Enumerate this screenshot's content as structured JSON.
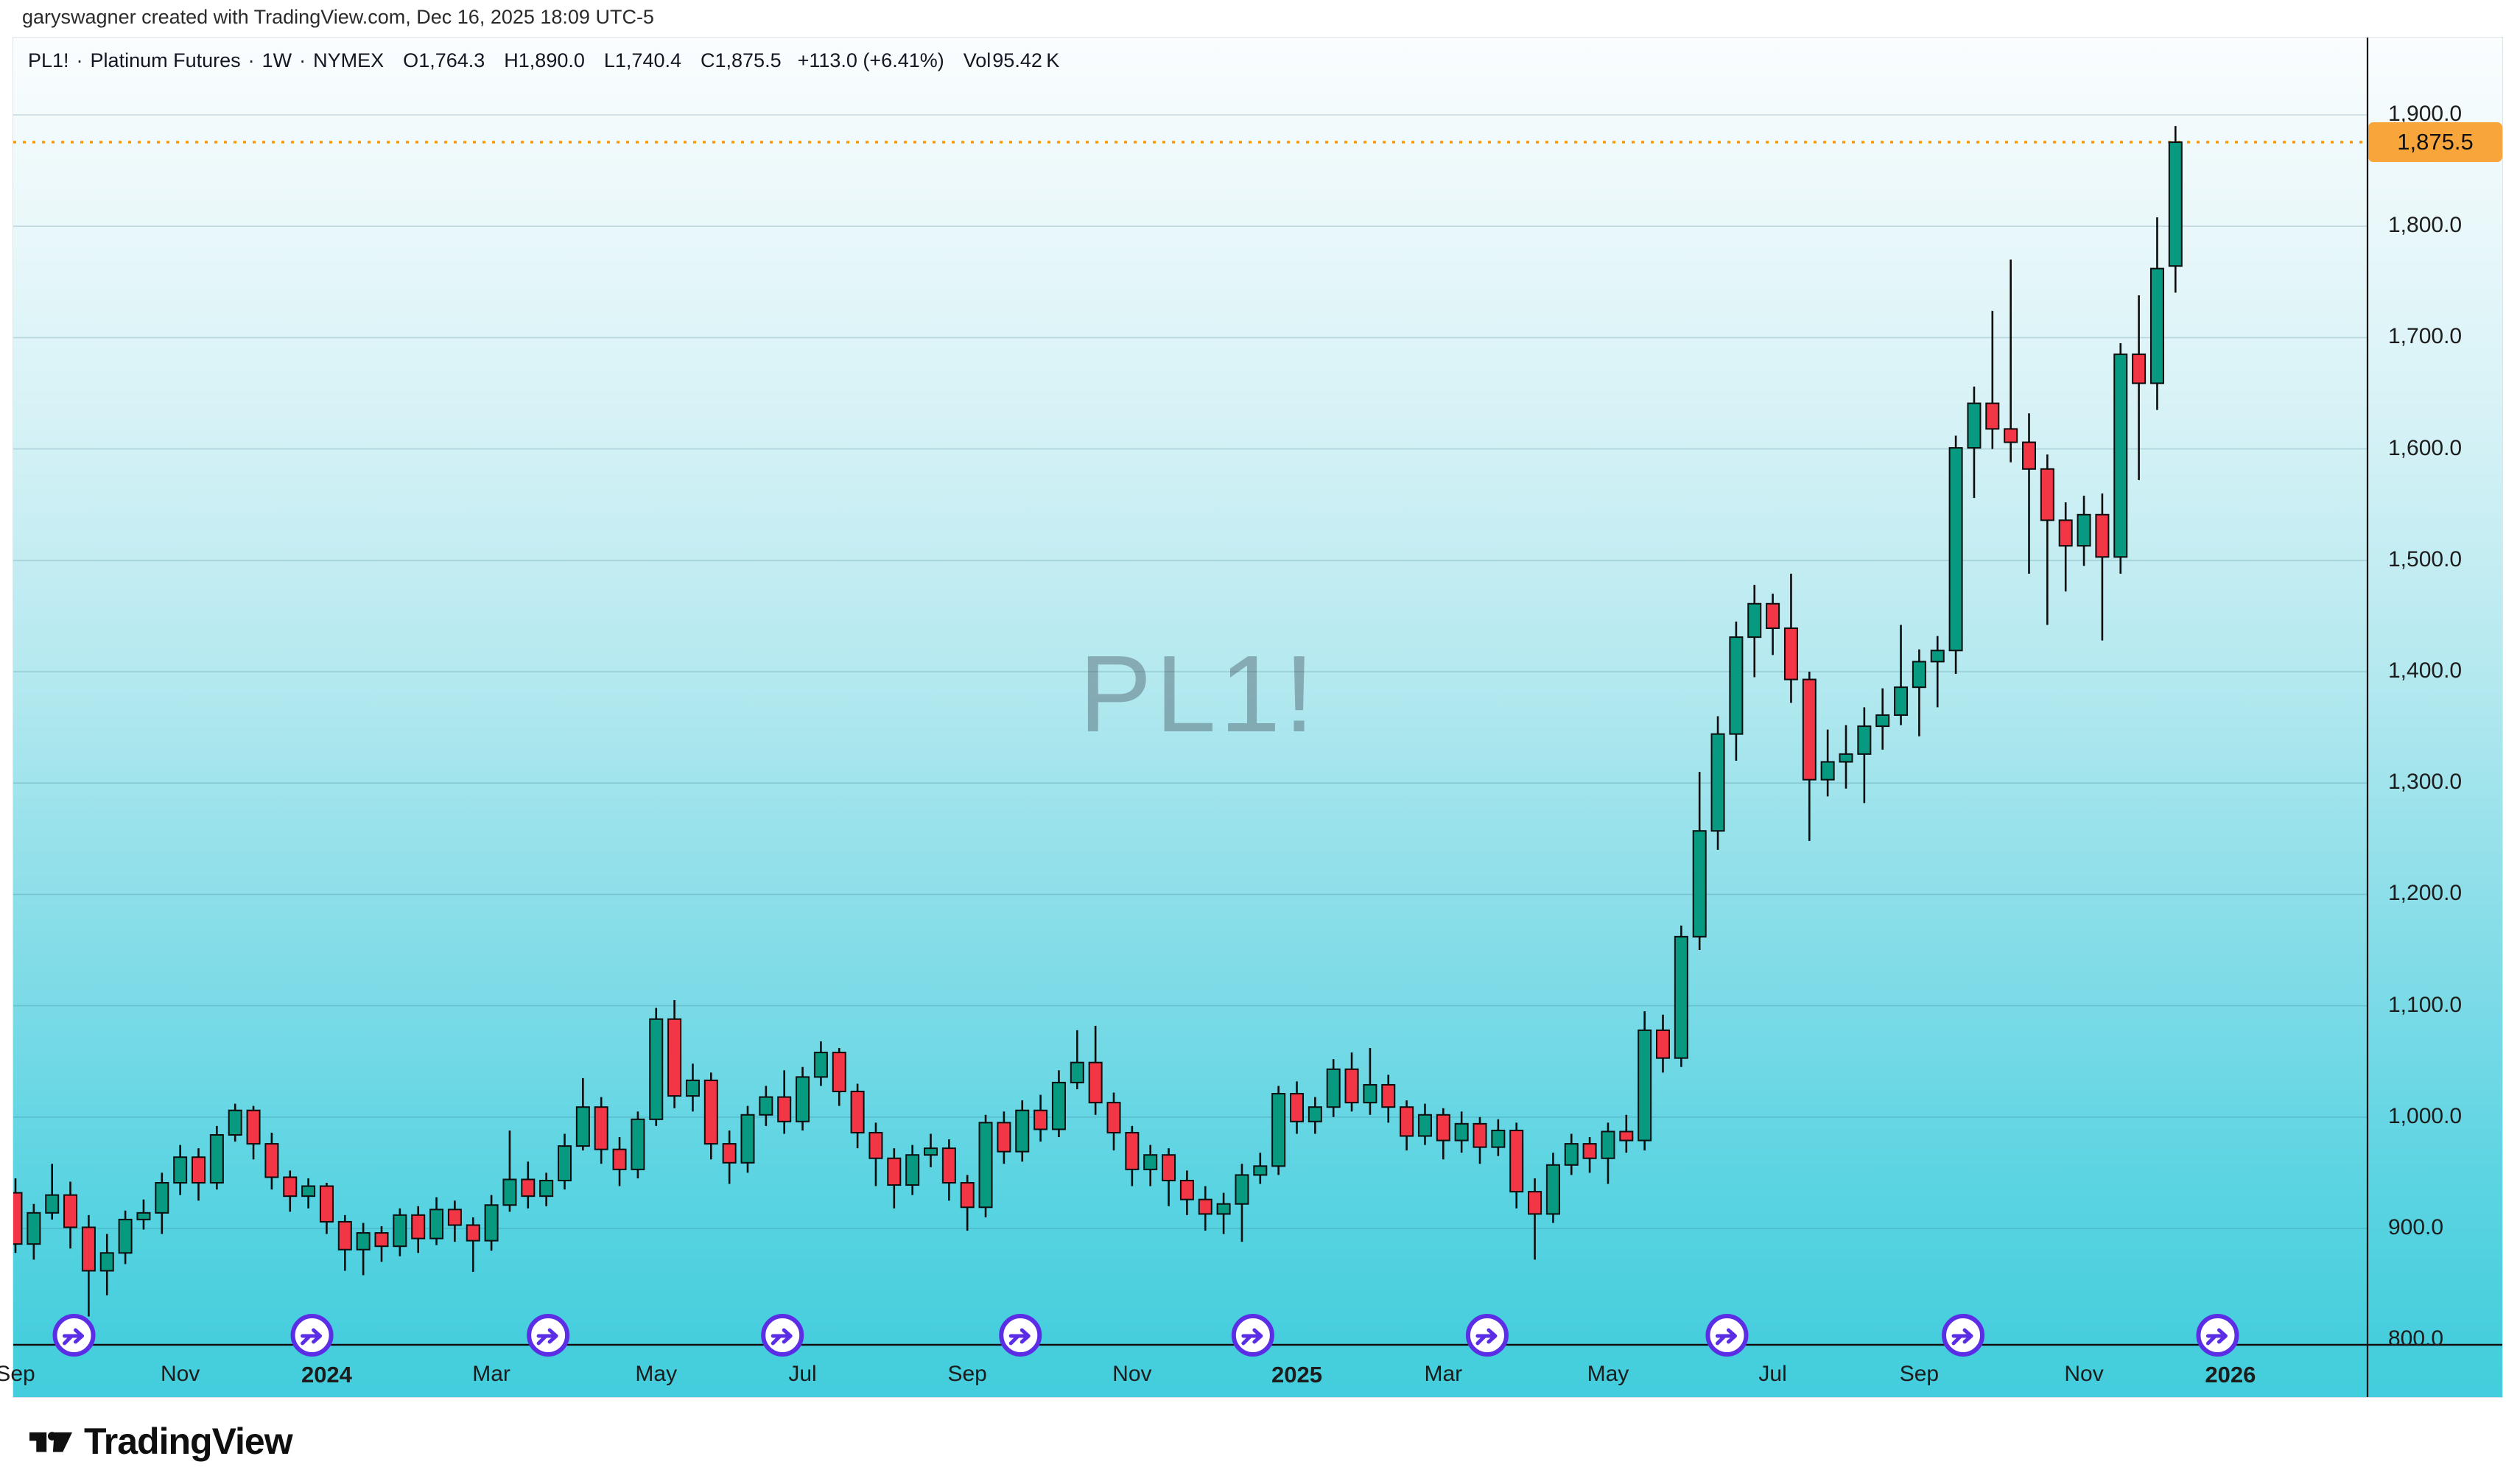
{
  "attribution": "garyswagner created with TradingView.com, Dec 16, 2025 18:09 UTC-5",
  "legend": {
    "symbol": "PL1!",
    "separator": "·",
    "name": "Platinum Futures",
    "interval": "1W",
    "exchange": "NYMEX",
    "ohlc": [
      {
        "label": "O",
        "value": "1,764.3"
      },
      {
        "label": "H",
        "value": "1,890.0"
      },
      {
        "label": "L",
        "value": "1,740.4"
      },
      {
        "label": "C",
        "value": "1,875.5"
      }
    ],
    "change": "+113.0 (+6.41%)",
    "volume_label": "Vol",
    "volume_value": "95.42 K"
  },
  "watermark": "PL1!",
  "price_scale": {
    "last_price_label": "1,875.5",
    "ticks": [
      {
        "label": "1,900.0",
        "price": 1900
      },
      {
        "label": "1,800.0",
        "price": 1800
      },
      {
        "label": "1,700.0",
        "price": 1700
      },
      {
        "label": "1,600.0",
        "price": 1600
      },
      {
        "label": "1,500.0",
        "price": 1500
      },
      {
        "label": "1,400.0",
        "price": 1400
      },
      {
        "label": "1,300.0",
        "price": 1300
      },
      {
        "label": "1,200.0",
        "price": 1200
      },
      {
        "label": "1,100.0",
        "price": 1100
      },
      {
        "label": "1,000.0",
        "price": 1000
      },
      {
        "label": "900.0",
        "price": 900
      },
      {
        "label": "800.0",
        "price": 800
      }
    ]
  },
  "time_scale": {
    "ticks": [
      {
        "label": "Sep",
        "week": 0,
        "bold": false
      },
      {
        "label": "Nov",
        "week": 9,
        "bold": false
      },
      {
        "label": "2024",
        "week": 17,
        "bold": true
      },
      {
        "label": "Mar",
        "week": 26,
        "bold": false
      },
      {
        "label": "May",
        "week": 35,
        "bold": false
      },
      {
        "label": "Jul",
        "week": 43,
        "bold": false
      },
      {
        "label": "Sep",
        "week": 52,
        "bold": false
      },
      {
        "label": "Nov",
        "week": 61,
        "bold": false
      },
      {
        "label": "2025",
        "week": 70,
        "bold": true
      },
      {
        "label": "Mar",
        "week": 78,
        "bold": false
      },
      {
        "label": "May",
        "week": 87,
        "bold": false
      },
      {
        "label": "Jul",
        "week": 96,
        "bold": false
      },
      {
        "label": "Sep",
        "week": 104,
        "bold": false
      },
      {
        "label": "Nov",
        "week": 113,
        "bold": false
      },
      {
        "label": "2026",
        "week": 121,
        "bold": true
      }
    ]
  },
  "rollover_markers": {
    "description": "quarterly contract continuation markers",
    "weeks": [
      3.2,
      16.2,
      29.1,
      41.9,
      54.9,
      67.6,
      80.4,
      93.5,
      106.4,
      120.3
    ]
  },
  "logo_text": "TradingView",
  "colors": {
    "up": "#089981",
    "down": "#F23645",
    "candle_border": "#0d0d0d",
    "last_price_line": "#FF9800",
    "last_price_tag_bg": "#F8A63C",
    "marker_purple": "#5B2EE6",
    "axis_line": "#111111",
    "grid_line": "rgba(30,90,110,0.20)",
    "text": "#131722"
  },
  "chart_data": {
    "type": "candlestick",
    "title": "PL1! Platinum Futures, 1 Week, NYMEX",
    "interval": "1W",
    "start_week_date": "2023-09-04",
    "price_axis_range": [
      800,
      1900
    ],
    "price_grid_step": 100,
    "grid": true,
    "legend_position": "top-left",
    "last_bar": {
      "open": 1764.3,
      "high": 1890.0,
      "low": 1740.4,
      "close": 1875.5,
      "change": 113.0,
      "change_pct": 6.41,
      "volume": "95.42K"
    },
    "candles_ohlc": [
      [
        932,
        945,
        878,
        886
      ],
      [
        886,
        922,
        872,
        914
      ],
      [
        914,
        958,
        908,
        930
      ],
      [
        930,
        942,
        882,
        901
      ],
      [
        901,
        912,
        821,
        862
      ],
      [
        862,
        895,
        840,
        878
      ],
      [
        878,
        916,
        868,
        908
      ],
      [
        908,
        926,
        899,
        914
      ],
      [
        914,
        950,
        895,
        941
      ],
      [
        941,
        975,
        930,
        964
      ],
      [
        964,
        972,
        925,
        941
      ],
      [
        941,
        992,
        935,
        984
      ],
      [
        984,
        1012,
        978,
        1006
      ],
      [
        1006,
        1010,
        962,
        976
      ],
      [
        976,
        986,
        935,
        946
      ],
      [
        946,
        952,
        915,
        929
      ],
      [
        929,
        945,
        918,
        938
      ],
      [
        938,
        941,
        895,
        906
      ],
      [
        906,
        912,
        862,
        881
      ],
      [
        881,
        905,
        858,
        896
      ],
      [
        896,
        902,
        870,
        884
      ],
      [
        884,
        918,
        875,
        912
      ],
      [
        912,
        920,
        878,
        891
      ],
      [
        891,
        928,
        885,
        917
      ],
      [
        917,
        925,
        888,
        903
      ],
      [
        903,
        910,
        861,
        889
      ],
      [
        889,
        930,
        880,
        921
      ],
      [
        921,
        988,
        915,
        944
      ],
      [
        944,
        960,
        918,
        929
      ],
      [
        929,
        950,
        920,
        943
      ],
      [
        943,
        985,
        935,
        974
      ],
      [
        974,
        1035,
        970,
        1009
      ],
      [
        1009,
        1018,
        958,
        971
      ],
      [
        971,
        982,
        938,
        953
      ],
      [
        953,
        1005,
        945,
        998
      ],
      [
        998,
        1098,
        992,
        1088
      ],
      [
        1088,
        1105,
        1008,
        1019
      ],
      [
        1019,
        1048,
        1005,
        1033
      ],
      [
        1033,
        1040,
        962,
        976
      ],
      [
        976,
        988,
        940,
        959
      ],
      [
        959,
        1010,
        950,
        1002
      ],
      [
        1002,
        1028,
        992,
        1018
      ],
      [
        1018,
        1042,
        985,
        996
      ],
      [
        996,
        1045,
        988,
        1036
      ],
      [
        1036,
        1068,
        1028,
        1058
      ],
      [
        1058,
        1062,
        1010,
        1023
      ],
      [
        1023,
        1030,
        972,
        986
      ],
      [
        986,
        995,
        938,
        963
      ],
      [
        963,
        972,
        918,
        939
      ],
      [
        939,
        975,
        930,
        966
      ],
      [
        966,
        985,
        955,
        972
      ],
      [
        972,
        980,
        925,
        941
      ],
      [
        941,
        948,
        898,
        919
      ],
      [
        919,
        1002,
        910,
        995
      ],
      [
        995,
        1005,
        958,
        969
      ],
      [
        969,
        1015,
        960,
        1006
      ],
      [
        1006,
        1020,
        978,
        989
      ],
      [
        989,
        1042,
        982,
        1031
      ],
      [
        1031,
        1078,
        1025,
        1049
      ],
      [
        1049,
        1082,
        1002,
        1013
      ],
      [
        1013,
        1022,
        970,
        986
      ],
      [
        986,
        992,
        938,
        953
      ],
      [
        953,
        975,
        938,
        966
      ],
      [
        966,
        972,
        920,
        943
      ],
      [
        943,
        952,
        912,
        926
      ],
      [
        926,
        938,
        898,
        913
      ],
      [
        913,
        932,
        895,
        922
      ],
      [
        922,
        958,
        888,
        948
      ],
      [
        948,
        968,
        940,
        956
      ],
      [
        956,
        1028,
        948,
        1021
      ],
      [
        1021,
        1032,
        985,
        996
      ],
      [
        996,
        1018,
        985,
        1009
      ],
      [
        1009,
        1052,
        1000,
        1043
      ],
      [
        1043,
        1058,
        1005,
        1013
      ],
      [
        1013,
        1062,
        1002,
        1029
      ],
      [
        1029,
        1038,
        995,
        1009
      ],
      [
        1009,
        1015,
        970,
        983
      ],
      [
        983,
        1012,
        975,
        1002
      ],
      [
        1002,
        1008,
        962,
        979
      ],
      [
        979,
        1005,
        968,
        994
      ],
      [
        994,
        1000,
        958,
        973
      ],
      [
        973,
        998,
        965,
        988
      ],
      [
        988,
        995,
        918,
        933
      ],
      [
        933,
        945,
        872,
        913
      ],
      [
        913,
        968,
        905,
        957
      ],
      [
        957,
        985,
        948,
        976
      ],
      [
        976,
        982,
        950,
        963
      ],
      [
        963,
        995,
        940,
        987
      ],
      [
        987,
        1002,
        968,
        979
      ],
      [
        979,
        1095,
        970,
        1078
      ],
      [
        1078,
        1092,
        1040,
        1053
      ],
      [
        1053,
        1172,
        1045,
        1162
      ],
      [
        1162,
        1310,
        1150,
        1257
      ],
      [
        1257,
        1360,
        1240,
        1344
      ],
      [
        1344,
        1445,
        1320,
        1431
      ],
      [
        1431,
        1478,
        1395,
        1461
      ],
      [
        1461,
        1470,
        1415,
        1439
      ],
      [
        1439,
        1488,
        1372,
        1393
      ],
      [
        1393,
        1400,
        1248,
        1303
      ],
      [
        1303,
        1348,
        1288,
        1319
      ],
      [
        1319,
        1352,
        1295,
        1326
      ],
      [
        1326,
        1368,
        1282,
        1351
      ],
      [
        1351,
        1385,
        1330,
        1361
      ],
      [
        1361,
        1442,
        1352,
        1386
      ],
      [
        1386,
        1420,
        1342,
        1409
      ],
      [
        1409,
        1432,
        1368,
        1419
      ],
      [
        1419,
        1612,
        1398,
        1601
      ],
      [
        1601,
        1656,
        1556,
        1641
      ],
      [
        1641,
        1724,
        1600,
        1618
      ],
      [
        1618,
        1770,
        1588,
        1606
      ],
      [
        1606,
        1632,
        1488,
        1582
      ],
      [
        1582,
        1595,
        1442,
        1536
      ],
      [
        1536,
        1552,
        1472,
        1513
      ],
      [
        1513,
        1558,
        1495,
        1541
      ],
      [
        1541,
        1560,
        1428,
        1503
      ],
      [
        1503,
        1695,
        1488,
        1685
      ],
      [
        1685,
        1738,
        1572,
        1659
      ],
      [
        1659,
        1808,
        1635,
        1762
      ],
      [
        1764.3,
        1890,
        1740.4,
        1875.5
      ]
    ]
  }
}
